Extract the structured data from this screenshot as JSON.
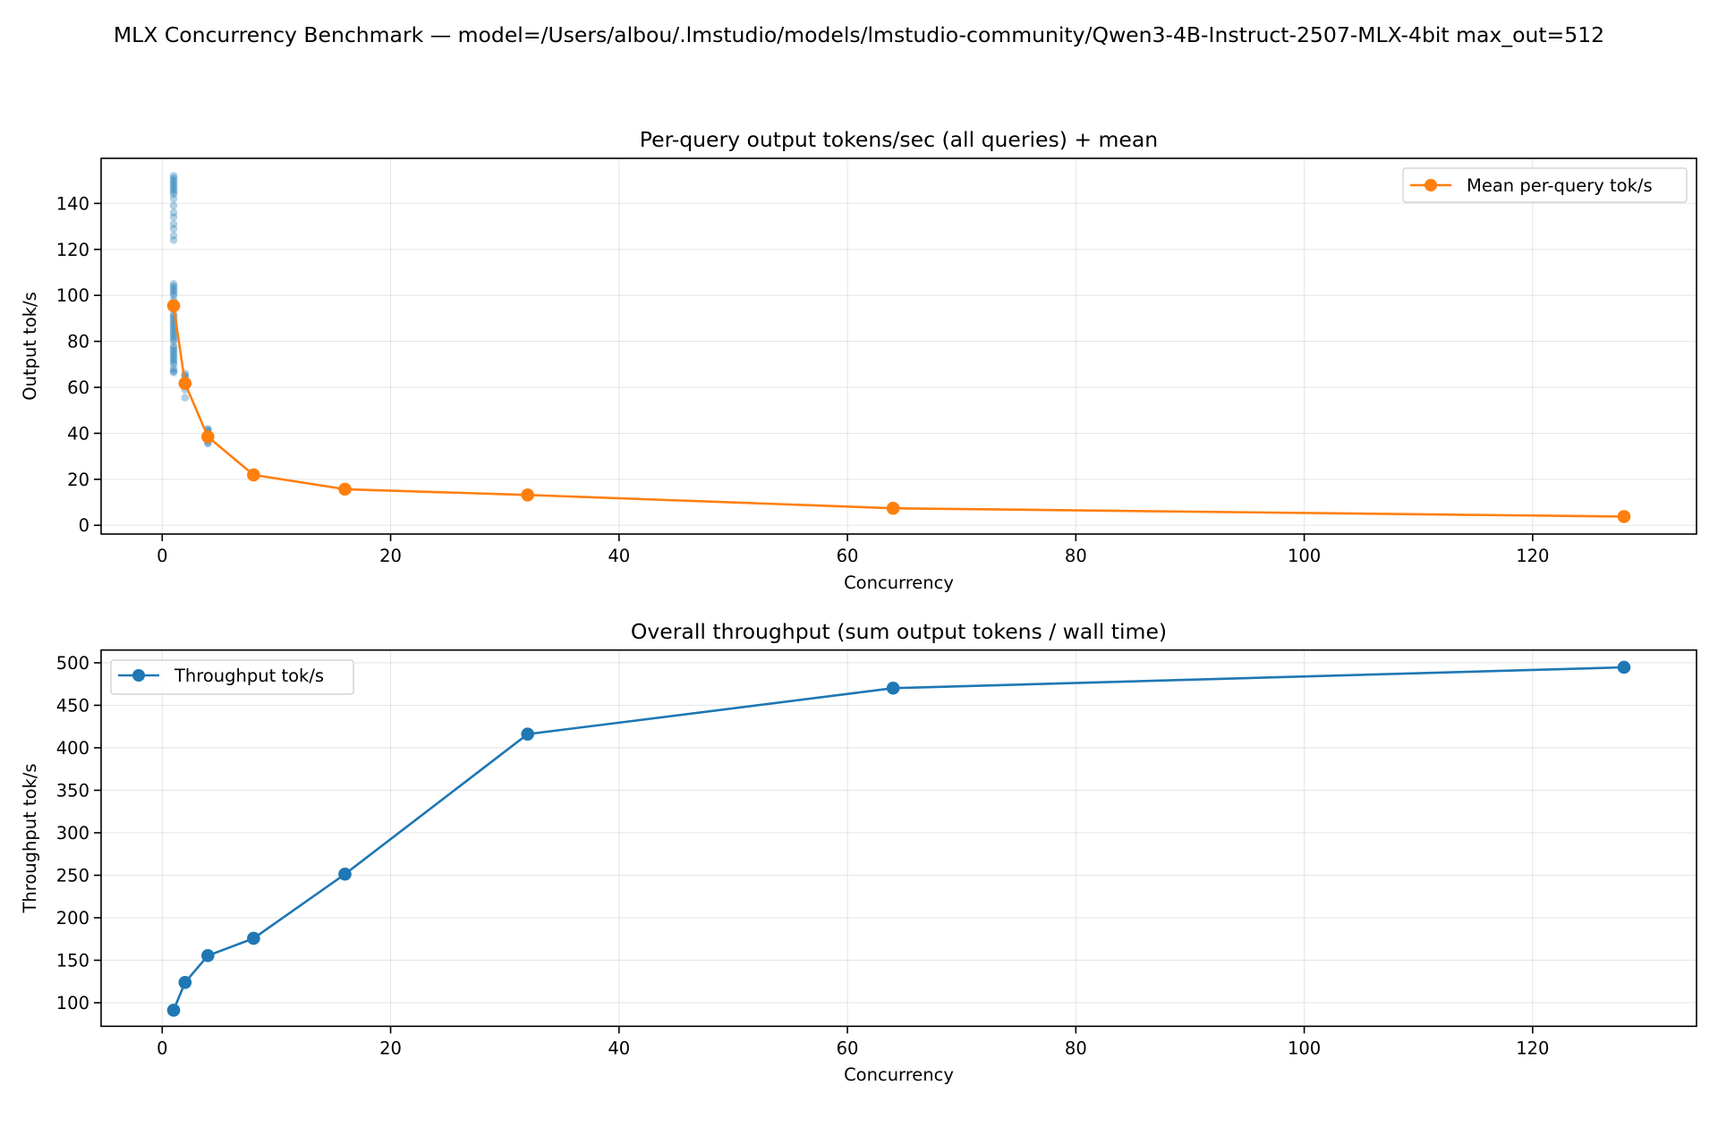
{
  "figure": {
    "suptitle": "MLX Concurrency Benchmark — model=/Users/albou/.lmstudio/models/lmstudio-community/Qwen3-4B-Instruct-2507-MLX-4bit max_out=512"
  },
  "colors": {
    "mean_line": "#ff7f0e",
    "throughput_line": "#1f77b4",
    "scatter": "#1f77b4"
  },
  "chart_data": [
    {
      "type": "line",
      "title": "Per-query output tokens/sec (all queries) + mean",
      "xlabel": "Concurrency",
      "ylabel": "Output tok/s",
      "xlim": [
        -5.35,
        134.35
      ],
      "ylim": [
        -3.8,
        159.6
      ],
      "xticks": [
        0,
        20,
        40,
        60,
        80,
        100,
        120
      ],
      "yticks": [
        0,
        20,
        40,
        60,
        80,
        100,
        120,
        140
      ],
      "grid": true,
      "legend_position": "upper right",
      "series": [
        {
          "name": "Mean per-query tok/s",
          "kind": "line-marker",
          "color": "#ff7f0e",
          "x": [
            1,
            2,
            4,
            8,
            16,
            32,
            64,
            128
          ],
          "values": [
            95.5,
            61.7,
            38.5,
            21.9,
            15.7,
            13.2,
            7.4,
            3.8
          ]
        },
        {
          "name": "Per-query tok/s (all queries)",
          "kind": "scatter",
          "color": "#1f77b4",
          "in_legend": false,
          "points": [
            {
              "x": 1,
              "y": [
                152,
                151,
                150,
                149,
                148,
                147,
                146,
                145,
                144,
                142,
                139,
                136,
                134,
                131,
                129,
                126,
                124,
                105,
                104,
                103,
                102,
                101,
                100,
                98,
                96,
                94,
                92,
                91,
                90,
                89,
                88,
                87,
                86,
                85,
                84,
                83,
                82,
                81,
                80,
                78,
                77,
                76,
                75,
                74,
                73,
                72,
                71,
                70,
                68,
                67,
                66.5
              ]
            },
            {
              "x": 2,
              "y": [
                66,
                65.2,
                64.5,
                63,
                61,
                59,
                55.5
              ]
            },
            {
              "x": 4,
              "y": [
                42,
                41.5,
                41,
                40,
                39,
                38,
                37,
                36,
                35.5
              ]
            }
          ]
        }
      ]
    },
    {
      "type": "line",
      "title": "Overall throughput (sum output tokens / wall time)",
      "xlabel": "Concurrency",
      "ylabel": "Throughput tok/s",
      "xlim": [
        -5.35,
        134.35
      ],
      "ylim": [
        72.3,
        515.0
      ],
      "xticks": [
        0,
        20,
        40,
        60,
        80,
        100,
        120
      ],
      "yticks": [
        100,
        150,
        200,
        250,
        300,
        350,
        400,
        450,
        500
      ],
      "grid": true,
      "legend_position": "upper left",
      "series": [
        {
          "name": "Throughput tok/s",
          "kind": "line-marker",
          "color": "#1f77b4",
          "x": [
            1,
            2,
            4,
            8,
            16,
            32,
            64,
            128
          ],
          "values": [
            91.2,
            123.9,
            155.5,
            175.8,
            251.3,
            416.1,
            470.2,
            494.7
          ]
        }
      ]
    }
  ]
}
